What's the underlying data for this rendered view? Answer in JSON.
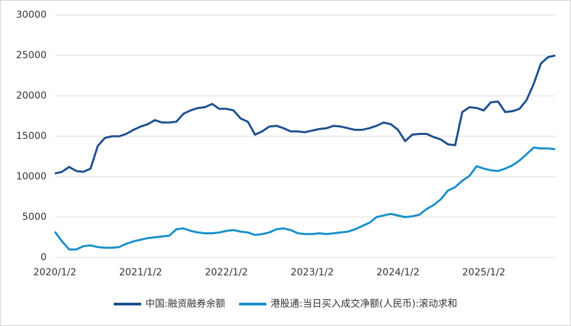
{
  "chart_data": {
    "type": "line",
    "categories": [
      "2020/1/2",
      null,
      null,
      null,
      null,
      null,
      null,
      null,
      null,
      null,
      null,
      null,
      "2021/1/2",
      null,
      null,
      null,
      null,
      null,
      null,
      null,
      null,
      null,
      null,
      null,
      "2022/1/2",
      null,
      null,
      null,
      null,
      null,
      null,
      null,
      null,
      null,
      null,
      null,
      "2023/1/2",
      null,
      null,
      null,
      null,
      null,
      null,
      null,
      null,
      null,
      null,
      null,
      "2024/1/2",
      null,
      null,
      null,
      null,
      null,
      null,
      null,
      null,
      null,
      null,
      null,
      "2025/1/2",
      null,
      null,
      null,
      null,
      null,
      null,
      null,
      null,
      null,
      null
    ],
    "series": [
      {
        "name": "中国:融资融券余额",
        "color": "#1d4f8f",
        "values": [
          10400,
          10600,
          11200,
          10700,
          10600,
          11000,
          13800,
          14800,
          15000,
          15000,
          15300,
          15800,
          16200,
          16500,
          17000,
          16700,
          16700,
          16800,
          17800,
          18200,
          18500,
          18600,
          19000,
          18400,
          18400,
          18200,
          17200,
          16800,
          15200,
          15600,
          16200,
          16300,
          16000,
          15600,
          15600,
          15500,
          15700,
          15900,
          16000,
          16300,
          16200,
          16000,
          15800,
          15800,
          16000,
          16300,
          16700,
          16500,
          15800,
          14400,
          15200,
          15300,
          15300,
          14900,
          14600,
          14000,
          13900,
          18000,
          18600,
          18500,
          18200,
          19200,
          19300,
          18000,
          18100,
          18400,
          19500,
          21500,
          24000,
          24800,
          25000
        ]
      },
      {
        "name": "港股通:当日买入成交净额(人民币):滚动求和",
        "color": "#1a8fc9",
        "values": [
          3200,
          2000,
          1000,
          1000,
          1400,
          1500,
          1300,
          1200,
          1200,
          1300,
          1700,
          2000,
          2200,
          2400,
          2500,
          2600,
          2700,
          3500,
          3600,
          3300,
          3100,
          3000,
          3000,
          3100,
          3300,
          3400,
          3200,
          3100,
          2800,
          2900,
          3100,
          3500,
          3600,
          3400,
          3000,
          2900,
          2900,
          3000,
          2900,
          3000,
          3100,
          3200,
          3500,
          3900,
          4300,
          5000,
          5200,
          5400,
          5200,
          5000,
          5100,
          5300,
          6000,
          6500,
          7200,
          8300,
          8700,
          9500,
          10100,
          11300,
          11000,
          10800,
          10700,
          11000,
          11400,
          12000,
          12800,
          13600,
          13500,
          13500,
          13400
        ]
      }
    ],
    "ylim": [
      0,
      30000
    ],
    "yticks": [
      0,
      5000,
      10000,
      15000,
      20000,
      25000,
      30000
    ],
    "grid": true,
    "legend": "bottom"
  }
}
